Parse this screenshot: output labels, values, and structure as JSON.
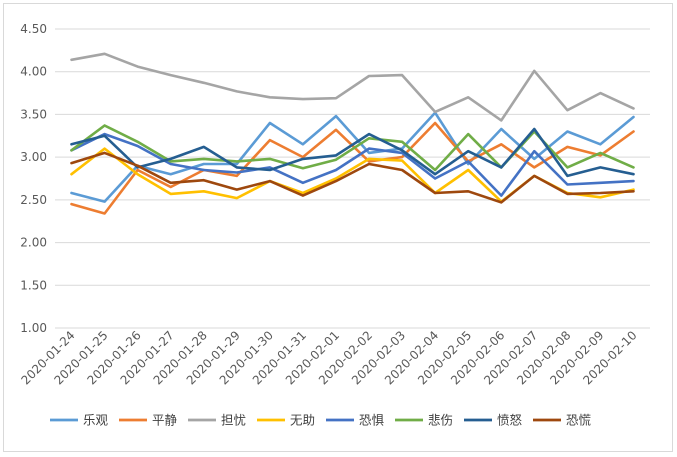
{
  "chart_data": {
    "type": "line",
    "title": "",
    "xlabel": "",
    "ylabel": "",
    "ylim": [
      1.0,
      4.5
    ],
    "y_ticks": [
      "1.00",
      "1.50",
      "2.00",
      "2.50",
      "3.00",
      "3.50",
      "4.00",
      "4.50"
    ],
    "grid": "horizontal",
    "legend": "bottom",
    "categories": [
      "2020-01-24",
      "2020-01-25",
      "2020-01-26",
      "2020-01-27",
      "2020-01-28",
      "2020-01-29",
      "2020-01-30",
      "2020-01-31",
      "2020-02-01",
      "2020-02-02",
      "2020-02-03",
      "2020-02-04",
      "2020-02-05",
      "2020-02-06",
      "2020-02-07",
      "2020-02-08",
      "2020-02-09",
      "2020-02-10"
    ],
    "series": [
      {
        "name": "乐观",
        "color": "#5b9bd5",
        "values": [
          2.58,
          2.48,
          2.9,
          2.8,
          2.92,
          2.92,
          3.4,
          3.15,
          3.48,
          3.05,
          3.1,
          3.52,
          2.92,
          3.33,
          2.98,
          3.3,
          3.15,
          3.47
        ]
      },
      {
        "name": "平静",
        "color": "#ed7d31",
        "values": [
          2.45,
          2.34,
          2.85,
          2.65,
          2.85,
          2.78,
          3.2,
          3.0,
          3.32,
          2.95,
          3.0,
          3.4,
          2.95,
          3.15,
          2.88,
          3.12,
          3.02,
          3.3
        ]
      },
      {
        "name": "担忧",
        "color": "#a5a5a5",
        "values": [
          4.14,
          4.21,
          4.06,
          3.96,
          3.87,
          3.77,
          3.7,
          3.68,
          3.69,
          3.95,
          3.96,
          3.53,
          3.7,
          3.43,
          4.01,
          3.55,
          3.75,
          3.57
        ]
      },
      {
        "name": "无助",
        "color": "#ffc000",
        "values": [
          2.8,
          3.1,
          2.8,
          2.57,
          2.6,
          2.52,
          2.72,
          2.58,
          2.75,
          2.98,
          2.96,
          2.58,
          2.85,
          2.48,
          2.78,
          2.58,
          2.53,
          2.62
        ]
      },
      {
        "name": "恐惧",
        "color": "#4472c4",
        "values": [
          3.08,
          3.27,
          3.13,
          2.92,
          2.85,
          2.82,
          2.88,
          2.7,
          2.85,
          3.1,
          3.05,
          2.75,
          2.95,
          2.55,
          3.07,
          2.68,
          2.7,
          2.72
        ]
      },
      {
        "name": "悲伤",
        "color": "#70ad47",
        "values": [
          3.08,
          3.37,
          3.18,
          2.95,
          2.98,
          2.95,
          2.98,
          2.87,
          2.97,
          3.22,
          3.18,
          2.85,
          3.27,
          2.88,
          3.3,
          2.88,
          3.05,
          2.88
        ]
      },
      {
        "name": "愤怒",
        "color": "#255e91",
        "values": [
          3.15,
          3.25,
          2.88,
          2.98,
          3.12,
          2.88,
          2.85,
          2.98,
          3.02,
          3.27,
          3.08,
          2.8,
          3.07,
          2.88,
          3.33,
          2.78,
          2.88,
          2.8
        ]
      },
      {
        "name": "恐慌",
        "color": "#9e480e",
        "values": [
          2.93,
          3.05,
          2.9,
          2.7,
          2.73,
          2.62,
          2.72,
          2.55,
          2.72,
          2.92,
          2.85,
          2.58,
          2.6,
          2.47,
          2.78,
          2.57,
          2.58,
          2.6
        ]
      }
    ]
  }
}
